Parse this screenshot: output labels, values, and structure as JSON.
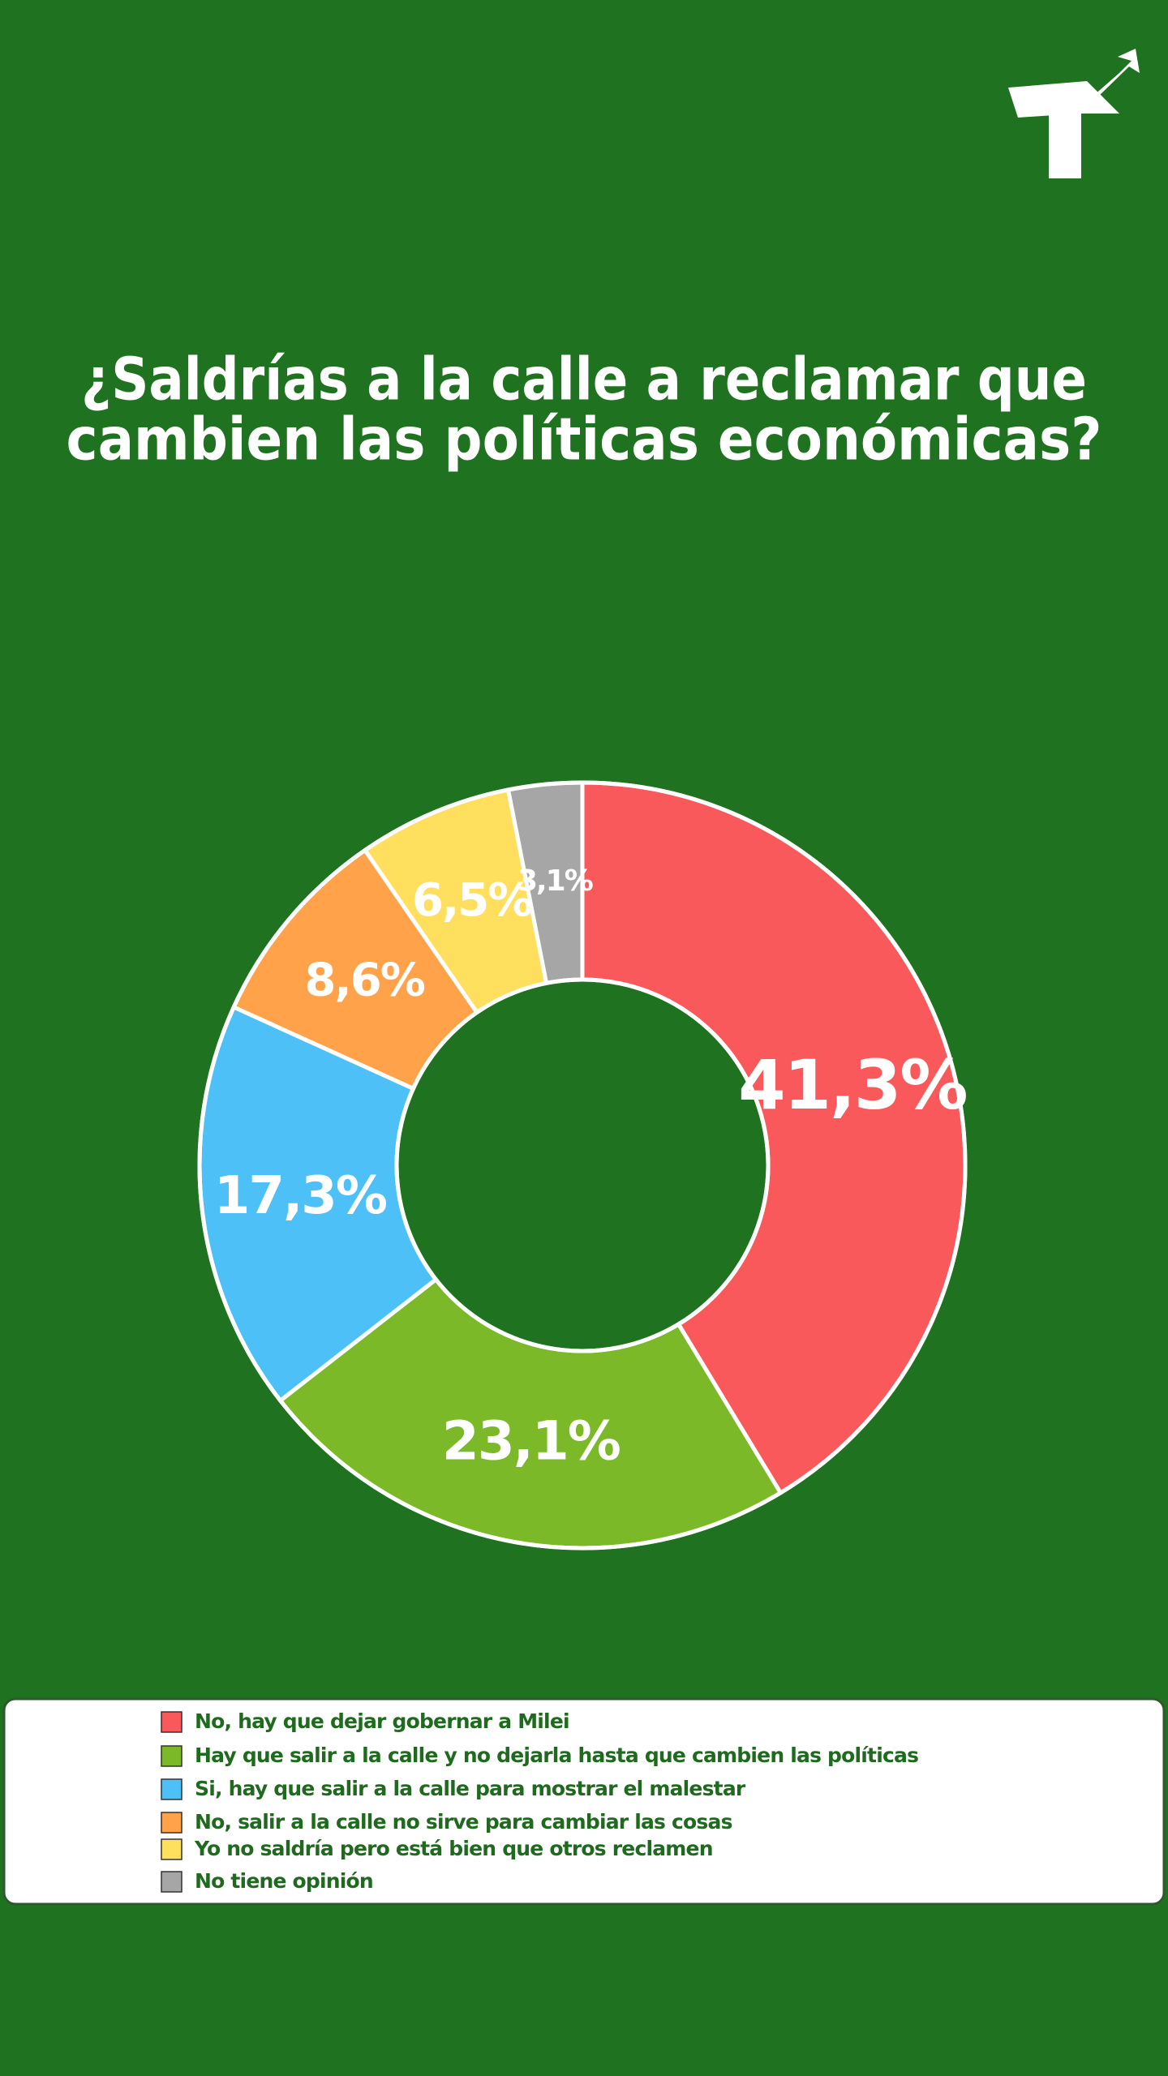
{
  "chart_data": {
    "type": "pie",
    "title": [
      "¿Saldrías a la calle a reclamar que",
      "cambien las políticas económicas?"
    ],
    "categories": [
      "No, hay que dejar gobernar a Milei",
      "Hay que salir a la calle y no dejarla hasta que cambien las políticas",
      "Si, hay que salir a la calle para mostrar el malestar",
      "No, salir a la calle no sirve para cambiar las cosas",
      "Yo no saldría pero está bien que otros reclamen",
      "No tiene opinión"
    ],
    "values": [
      41.3,
      23.1,
      17.3,
      8.6,
      6.5,
      3.1
    ],
    "value_labels": [
      "41,3%",
      "23,1%",
      "17,3%",
      "8,6%",
      "6,5%",
      "3,1%"
    ],
    "colors": [
      "#f9595a",
      "#7cb928",
      "#4dc0f7",
      "#ffa24a",
      "#ffdf5d",
      "#a6a6a6"
    ],
    "donut": true
  }
}
